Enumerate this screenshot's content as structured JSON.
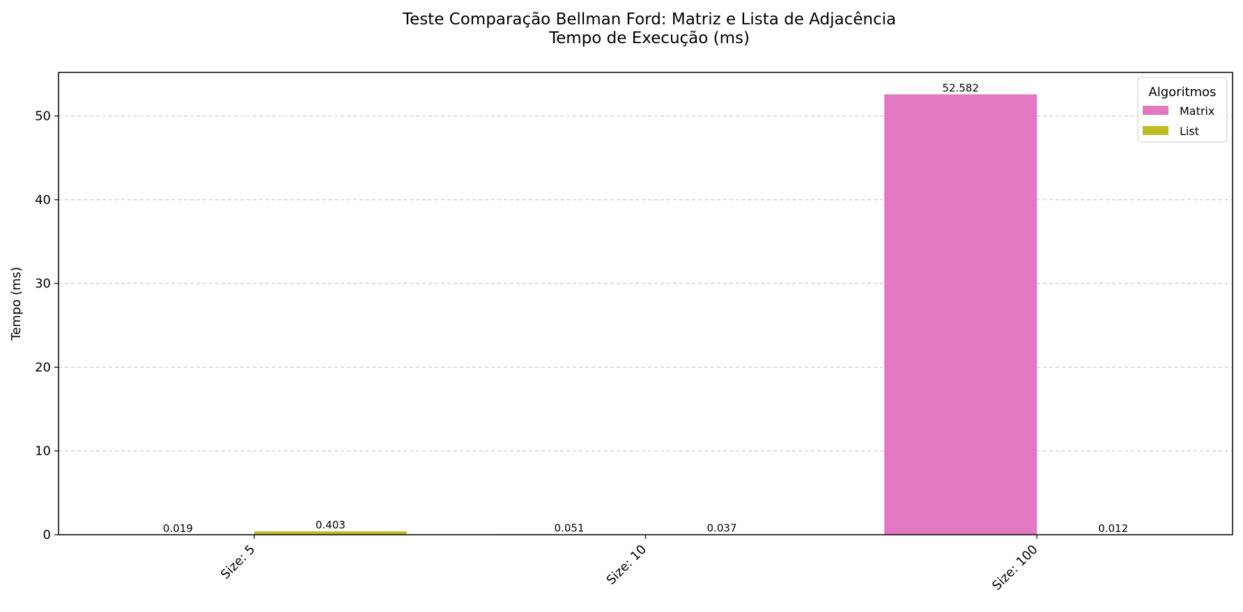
{
  "chart_data": {
    "type": "bar",
    "title": "Teste Comparação Bellman Ford: Matriz e Lista de Adjacência",
    "subtitle": "Tempo de Execução (ms)",
    "xlabel": "",
    "ylabel": "Tempo (ms)",
    "categories": [
      "Size: 5",
      "Size: 10",
      "Size: 100"
    ],
    "series": [
      {
        "name": "Matrix",
        "color": "#e377c2",
        "values": [
          0.019,
          0.051,
          52.582
        ],
        "labels": [
          "0.019",
          "0.051",
          "52.582"
        ]
      },
      {
        "name": "List",
        "color": "#bcbd22",
        "values": [
          0.403,
          0.037,
          0.012
        ],
        "labels": [
          "0.403",
          "0.037",
          "0.012"
        ]
      }
    ],
    "ylim": [
      0,
      55.2
    ],
    "yticks": [
      0,
      10,
      20,
      30,
      40,
      50
    ],
    "grid": true,
    "legend": {
      "title": "Algoritmos",
      "position": "top-right"
    }
  }
}
